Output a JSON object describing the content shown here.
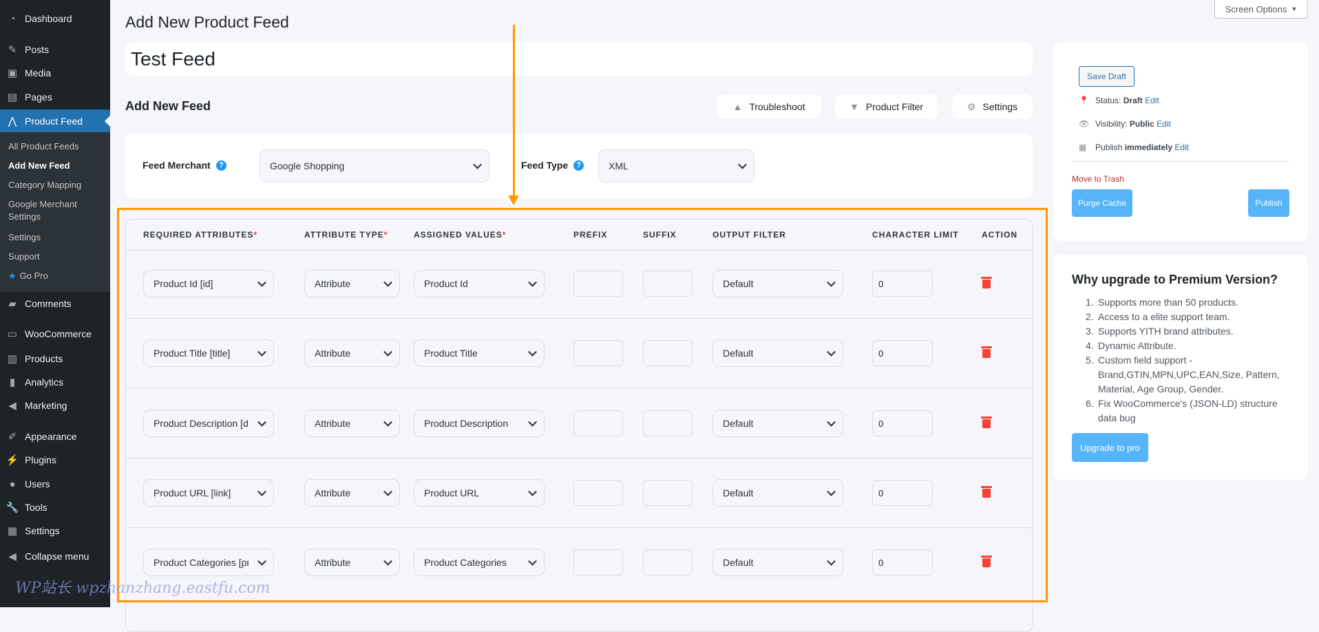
{
  "sidebar": {
    "items": [
      {
        "label": "Dashboard",
        "icon": "dashboard-icon"
      },
      {
        "label": "Posts",
        "icon": "pin-icon"
      },
      {
        "label": "Media",
        "icon": "media-icon"
      },
      {
        "label": "Pages",
        "icon": "pages-icon"
      },
      {
        "label": "Product Feed",
        "icon": "product-feed-icon",
        "active": true
      },
      {
        "label": "Comments",
        "icon": "comments-icon"
      },
      {
        "label": "WooCommerce",
        "icon": "woocommerce-icon"
      },
      {
        "label": "Products",
        "icon": "products-icon"
      },
      {
        "label": "Analytics",
        "icon": "analytics-icon"
      },
      {
        "label": "Marketing",
        "icon": "marketing-icon"
      },
      {
        "label": "Appearance",
        "icon": "appearance-icon"
      },
      {
        "label": "Plugins",
        "icon": "plugins-icon"
      },
      {
        "label": "Users",
        "icon": "users-icon"
      },
      {
        "label": "Tools",
        "icon": "tools-icon"
      },
      {
        "label": "Settings",
        "icon": "settings-icon"
      },
      {
        "label": "Collapse menu",
        "icon": "collapse-icon"
      }
    ],
    "submenu": [
      "All Product Feeds",
      "Add New Feed",
      "Category Mapping",
      "Google Merchant Settings",
      "Settings",
      "Support",
      "Go Pro"
    ],
    "submenu_current": "Add New Feed"
  },
  "screen_options": "Screen Options",
  "page_title": "Add New Product Feed",
  "feed_title": "Test Feed",
  "section_title": "Add New Feed",
  "toolbar": {
    "troubleshoot": "Troubleshoot",
    "product_filter": "Product Filter",
    "settings": "Settings"
  },
  "merchant": {
    "label": "Feed Merchant",
    "value": "Google Shopping",
    "type_label": "Feed Type",
    "type_value": "XML"
  },
  "table": {
    "headers": [
      "REQUIRED ATTRIBUTES",
      "ATTRIBUTE TYPE",
      "ASSIGNED VALUES",
      "PREFIX",
      "SUFFIX",
      "OUTPUT FILTER",
      "CHARACTER LIMIT",
      "ACTION"
    ],
    "required_marks": [
      true,
      true,
      true,
      false,
      false,
      false,
      false,
      false
    ],
    "rows": [
      {
        "attribute": "Product Id [id]",
        "type": "Attribute",
        "value": "Product Id",
        "prefix": "",
        "suffix": "",
        "filter": "Default",
        "limit": "0"
      },
      {
        "attribute": "Product Title [title]",
        "type": "Attribute",
        "value": "Product Title",
        "prefix": "",
        "suffix": "",
        "filter": "Default",
        "limit": "0"
      },
      {
        "attribute": "Product Description [description]",
        "type": "Attribute",
        "value": "Product Description",
        "prefix": "",
        "suffix": "",
        "filter": "Default",
        "limit": "0"
      },
      {
        "attribute": "Product URL [link]",
        "type": "Attribute",
        "value": "Product URL",
        "prefix": "",
        "suffix": "",
        "filter": "Default",
        "limit": "0"
      },
      {
        "attribute": "Product Categories [product_type]",
        "type": "Attribute",
        "value": "Product Categories",
        "prefix": "",
        "suffix": "",
        "filter": "Default",
        "limit": "0"
      }
    ]
  },
  "publish": {
    "save_draft": "Save Draft",
    "status_label": "Status:",
    "status_value": "Draft",
    "visibility_label": "Visibility:",
    "visibility_value": "Public",
    "publish_label": "Publish",
    "publish_value": "immediately",
    "edit": "Edit",
    "trash": "Move to Trash",
    "purge": "Purge Cache",
    "publish_btn": "Publish"
  },
  "premium": {
    "title": "Why upgrade to Premium Version?",
    "items": [
      "Supports more than 50 products.",
      "Access to a elite support team.",
      "Supports YITH brand attributes.",
      "Dynamic Attribute.",
      "Custom field support - Brand,GTIN,MPN,UPC,EAN,Size, Pattern, Material, Age Group, Gender.",
      "Fix WooCommerce's (JSON-LD) structure data bug"
    ],
    "button": "Upgrade to pro"
  },
  "watermark": "WP站长 wpzhanzhang.eastfu.com",
  "colors": {
    "accent": "#2271b1",
    "highlight": "#ff9800",
    "button": "#56b4fa",
    "danger": "#f44336"
  }
}
